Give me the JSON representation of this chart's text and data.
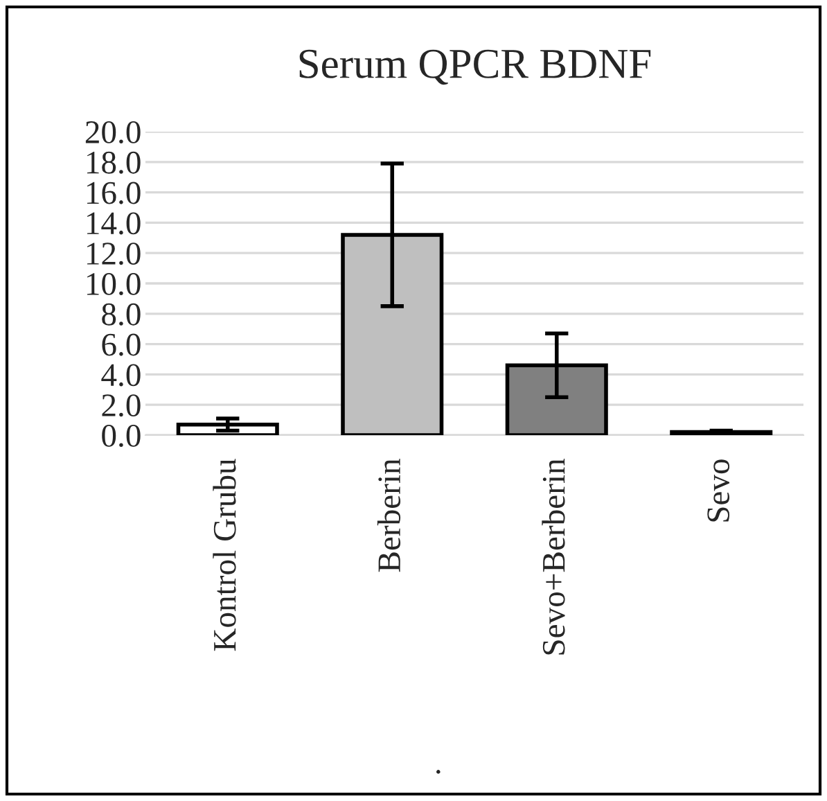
{
  "chart_data": {
    "type": "bar",
    "title": "Serum QPCR BDNF",
    "categories": [
      "Kontrol Grubu",
      "Berberin",
      "Sevo+Berberin",
      "Sevo"
    ],
    "values": [
      0.7,
      13.2,
      4.6,
      0.2
    ],
    "errors": [
      0.4,
      4.7,
      2.1,
      0.1
    ],
    "colors": [
      "#ffffff",
      "#bfbfbf",
      "#808080",
      "#404040"
    ],
    "ylim": [
      0,
      20
    ],
    "yticks": [
      {
        "value": 0,
        "label": "0.0"
      },
      {
        "value": 2,
        "label": "2.0"
      },
      {
        "value": 4,
        "label": "4.0"
      },
      {
        "value": 6,
        "label": "6.0"
      },
      {
        "value": 8,
        "label": "8.0"
      },
      {
        "value": 10,
        "label": "10.0"
      },
      {
        "value": 12,
        "label": "12.0"
      },
      {
        "value": 14,
        "label": "14.0"
      },
      {
        "value": 16,
        "label": "16.0"
      },
      {
        "value": 18,
        "label": "18.0"
      },
      {
        "value": 20,
        "label": "20.0"
      }
    ],
    "grid": "y",
    "annotations": [
      "."
    ]
  }
}
